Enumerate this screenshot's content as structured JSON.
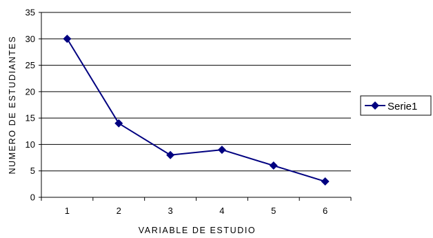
{
  "chart_data": {
    "type": "line",
    "title": "",
    "xlabel": "VARIABLE DE ESTUDIO",
    "ylabel": "NUMERO DE ESTUDIANTES",
    "x": [
      1,
      2,
      3,
      4,
      5,
      6
    ],
    "categories": [
      "1",
      "2",
      "3",
      "4",
      "5",
      "6"
    ],
    "series": [
      {
        "name": "Serie1",
        "values": [
          30,
          14,
          8,
          9,
          6,
          3
        ]
      }
    ],
    "ylim": [
      0,
      35
    ],
    "yticks": [
      0,
      5,
      10,
      15,
      20,
      25,
      30,
      35
    ],
    "grid": "horizontal",
    "legend": "right",
    "colors": {
      "series": "#000080",
      "grid": "#000000",
      "axis": "#000000"
    }
  }
}
